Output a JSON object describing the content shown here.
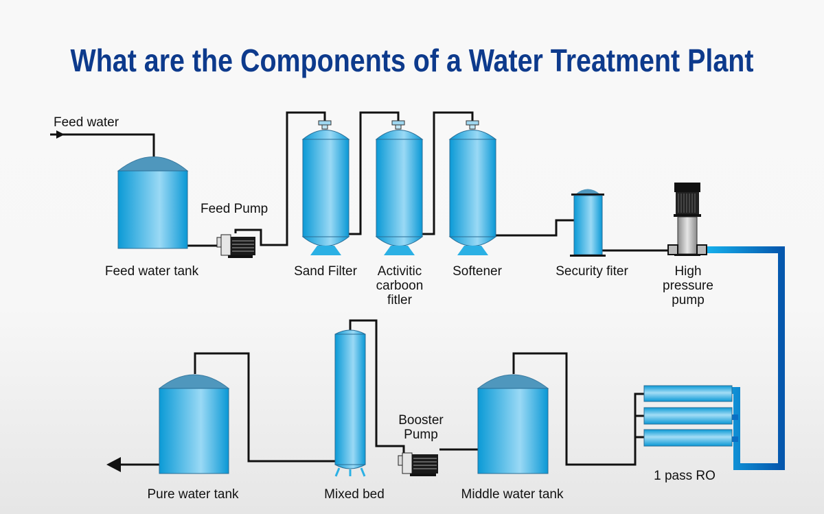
{
  "title": "What are the Components of a Water Treatment Plant",
  "labels": {
    "feed_water": "Feed water",
    "feed_pump": "Feed Pump",
    "feed_water_tank": "Feed water tank",
    "sand_filter": "Sand Filter",
    "activated_carbon": [
      "Activitic",
      "carboon",
      "fitler"
    ],
    "softener": "Softener",
    "security_filter": "Security fiter",
    "high_pressure_pump": [
      "High",
      "pressure",
      "pump"
    ],
    "ro": "1 pass RO",
    "middle_water_tank": "Middle water tank",
    "booster_pump": [
      "Booster",
      "Pump"
    ],
    "mixed_bed": "Mixed bed",
    "pure_water_tank": "Pure water tank"
  },
  "colors": {
    "title": "#0d3a8c",
    "tank": "#0aa0da",
    "high_pressure_pipe": "#0a6fc4"
  }
}
